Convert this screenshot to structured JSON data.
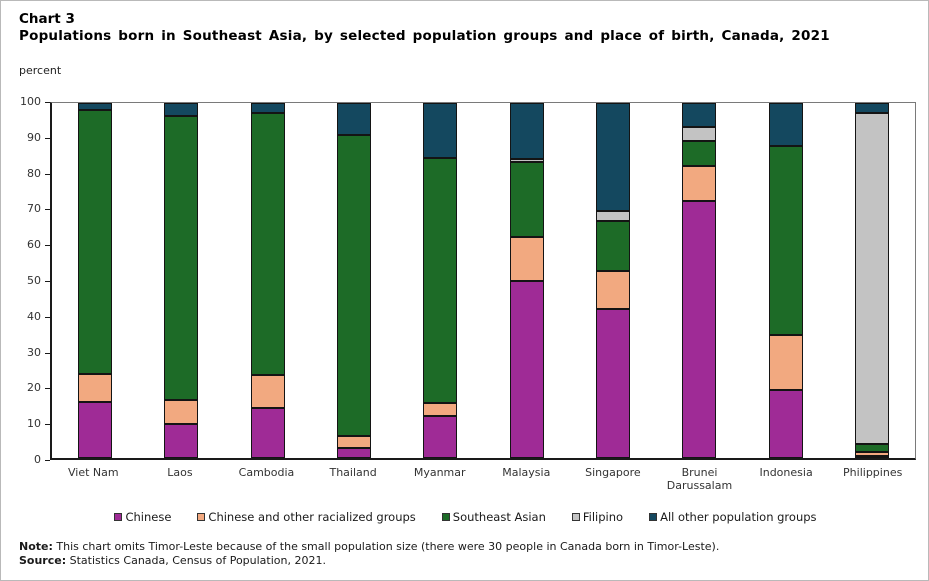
{
  "header": {
    "chart_number": "Chart 3",
    "title": "Populations born in Southeast Asia, by selected population groups and place of birth, Canada, 2021"
  },
  "axis_unit": "percent",
  "chart_data": {
    "type": "bar",
    "stacked": true,
    "grid": false,
    "legend_position": "bottom",
    "ylabel": "percent",
    "ylim": [
      0,
      100
    ],
    "y_ticks": [
      0,
      10,
      20,
      30,
      40,
      50,
      60,
      70,
      80,
      90,
      100
    ],
    "categories": [
      "Viet Nam",
      "Laos",
      "Cambodia",
      "Thailand",
      "Myanmar",
      "Malaysia",
      "Singapore",
      "Brunei Darussalam",
      "Indonesia",
      "Philippines"
    ],
    "series": [
      {
        "name": "Chinese",
        "color": "#9F2B96",
        "values": [
          15.9,
          9.5,
          14.0,
          2.7,
          11.7,
          49.9,
          42.0,
          72.3,
          19.3,
          0.7
        ]
      },
      {
        "name": "Chinese and other racialized groups",
        "color": "#F2A980",
        "values": [
          7.9,
          6.9,
          9.3,
          3.6,
          3.8,
          12.4,
          10.6,
          10.1,
          15.4,
          1.1
        ]
      },
      {
        "name": "Southeast Asian",
        "color": "#1D6B27",
        "values": [
          74.2,
          79.9,
          74.0,
          84.6,
          69.1,
          21.2,
          14.1,
          7.0,
          53.2,
          2.2
        ]
      },
      {
        "name": "Filipino",
        "color": "#C3C3C3",
        "values": [
          0,
          0,
          0,
          0,
          0,
          0.6,
          2.9,
          3.9,
          0,
          93.3
        ]
      },
      {
        "name": "All other population groups",
        "color": "#14485F",
        "values": [
          2.0,
          3.7,
          2.7,
          9.1,
          15.4,
          15.9,
          30.4,
          6.7,
          12.1,
          2.7
        ]
      }
    ]
  },
  "notes": {
    "note_label": "Note:",
    "note_text": " This chart omits Timor-Leste because of the small population size (there were 30 people in Canada born in Timor-Leste).",
    "source_label": "Source:",
    "source_text": " Statistics Canada, Census of Population, 2021."
  }
}
